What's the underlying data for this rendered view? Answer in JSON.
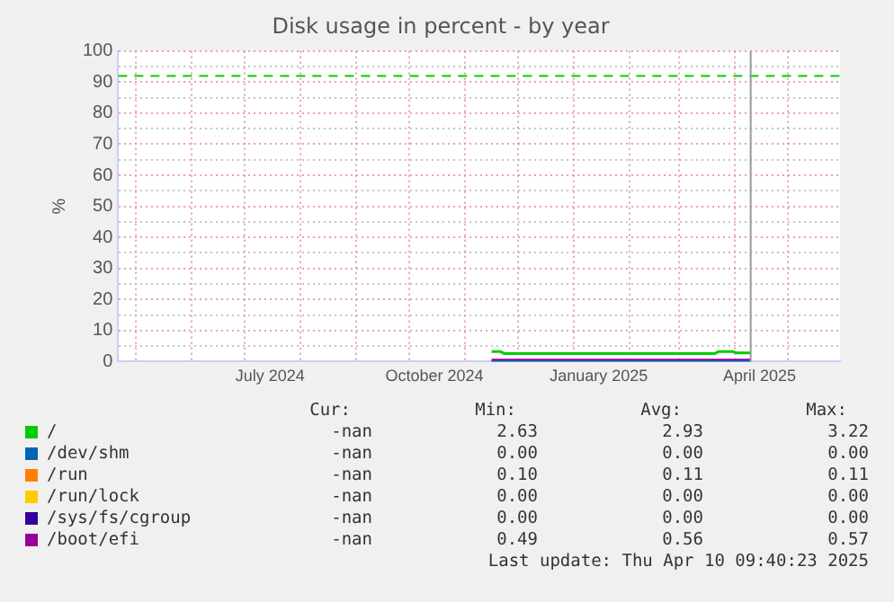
{
  "chart_data": {
    "type": "line",
    "title": "Disk usage in percent - by year",
    "ylabel": "%",
    "xlim": [
      "2024-04-21",
      "2025-05-30"
    ],
    "xticks": [
      {
        "value": "2024-05-01",
        "label": null
      },
      {
        "value": "2024-06-01",
        "label": null
      },
      {
        "value": "2024-07-01",
        "label": null
      },
      {
        "value": "2024-07-15",
        "label": "July 2024"
      },
      {
        "value": "2024-08-01",
        "label": null
      },
      {
        "value": "2024-09-01",
        "label": null
      },
      {
        "value": "2024-10-01",
        "label": null
      },
      {
        "value": "2024-10-15",
        "label": "October 2024"
      },
      {
        "value": "2024-11-01",
        "label": null
      },
      {
        "value": "2024-12-01",
        "label": null
      },
      {
        "value": "2025-01-01",
        "label": null
      },
      {
        "value": "2025-01-15",
        "label": "January 2025"
      },
      {
        "value": "2025-02-01",
        "label": null
      },
      {
        "value": "2025-03-01",
        "label": null
      },
      {
        "value": "2025-04-01",
        "label": null
      },
      {
        "value": "2025-04-15",
        "label": "April 2025"
      },
      {
        "value": "2025-05-01",
        "label": null
      }
    ],
    "ylim": [
      0,
      100
    ],
    "yticks": [
      0,
      {
        "value": 5,
        "label": null
      },
      10,
      {
        "value": 15,
        "label": null
      },
      20,
      {
        "value": 25,
        "label": null
      },
      30,
      {
        "value": 35,
        "label": null
      },
      40,
      {
        "value": 45,
        "label": null
      },
      50,
      {
        "value": 55,
        "label": null
      },
      60,
      {
        "value": 65,
        "label": null
      },
      70,
      {
        "value": 75,
        "label": null
      },
      80,
      {
        "value": 85,
        "label": null
      },
      90,
      {
        "value": 95,
        "label": null
      },
      100
    ],
    "grid": true,
    "legend": "bottom",
    "marker": "none",
    "line_style": "solid",
    "series": [
      {
        "name": "/",
        "color": "#00cc00",
        "x": [
          "2024-11-16",
          "2024-11-21",
          "2024-11-23",
          "2025-03-21",
          "2025-03-23",
          "2025-03-31",
          "2025-04-02",
          "2025-04-10"
        ],
        "values": [
          3.2,
          3.2,
          2.6,
          2.6,
          3.2,
          3.2,
          2.8,
          2.8
        ]
      },
      {
        "name": "/dev/shm",
        "color": "#0066b3",
        "x": [
          "2024-11-16",
          "2025-04-10"
        ],
        "values": [
          0,
          0
        ]
      },
      {
        "name": "/run",
        "color": "#ff8000"
      },
      {
        "name": "/run/lock",
        "color": "#ffcc00"
      },
      {
        "name": "/sys/fs/cgroup",
        "color": "#330099"
      },
      {
        "name": "/boot/efi",
        "color": "#990099",
        "x": [
          "2024-11-16",
          "2025-04-10"
        ],
        "values": [
          0.5,
          0.5
        ]
      }
    ],
    "ref_lines": [
      {
        "axis": "y",
        "value": 92,
        "color": "#00cc00",
        "line_style": "dashed"
      },
      {
        "axis": "x",
        "value": "2025-04-10",
        "color": "#999999",
        "line_style": "solid"
      }
    ],
    "annotations": [
      "Cur:",
      "Min:",
      "Avg:",
      "Max:",
      "-nan",
      "2.63",
      "2.93",
      "3.22",
      "-nan",
      "0.00",
      "0.00",
      "0.00",
      "-nan",
      "0.10",
      "0.11",
      "0.11",
      "-nan",
      "0.00",
      "0.00",
      "0.00",
      "-nan",
      "0.00",
      "0.00",
      "0.00",
      "-nan",
      "0.49",
      "0.56",
      "0.57",
      "Last update: Thu Apr 10 09:40:23 2025"
    ]
  }
}
